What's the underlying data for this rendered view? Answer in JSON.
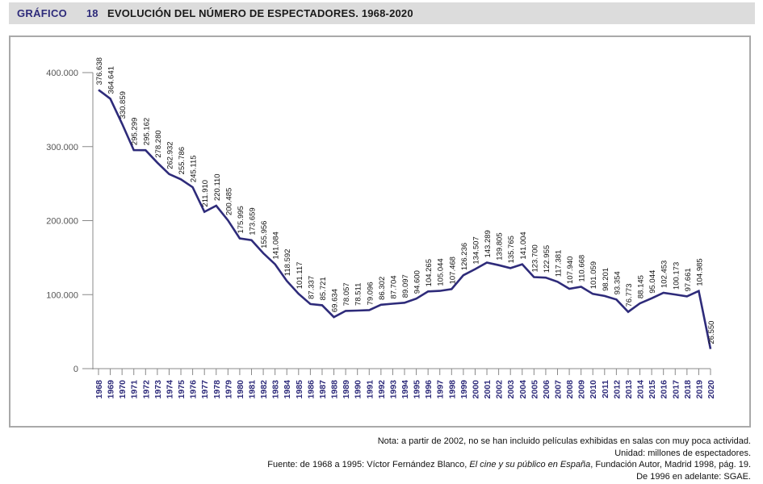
{
  "header": {
    "label": "GRÁFICO",
    "number": "18",
    "title": "EVOLUCIÓN DEL NÚMERO DE ESPECTADORES. 1968-2020"
  },
  "colors": {
    "line": "#2e2b7a",
    "header_label": "#2e2b7a",
    "header_bg": "#dcdcdc",
    "axis": "#888888",
    "frame": "#a9a9a9",
    "year_labels": "#2e2b7a"
  },
  "chart_data": {
    "type": "line",
    "title": "EVOLUCIÓN DEL NÚMERO DE ESPECTADORES. 1968-2020",
    "xlabel": "",
    "ylabel": "",
    "ylim": [
      0,
      400000
    ],
    "yticks": [
      0,
      100000,
      200000,
      300000,
      400000
    ],
    "ytick_labels": [
      "0",
      "100.000",
      "200.000",
      "300.000",
      "400.000"
    ],
    "grid": false,
    "legend": "none",
    "x": [
      1968,
      1969,
      1970,
      1971,
      1972,
      1973,
      1974,
      1975,
      1976,
      1977,
      1978,
      1979,
      1980,
      1981,
      1982,
      1983,
      1984,
      1985,
      1986,
      1987,
      1988,
      1989,
      1990,
      1991,
      1992,
      1993,
      1994,
      1995,
      1996,
      1997,
      1998,
      1999,
      2000,
      2001,
      2002,
      2003,
      2004,
      2005,
      2006,
      2007,
      2008,
      2009,
      2010,
      2011,
      2012,
      2013,
      2014,
      2015,
      2016,
      2017,
      2018,
      2019,
      2020
    ],
    "series": [
      {
        "name": "Espectadores",
        "values": [
          376638,
          364641,
          330859,
          295299,
          295162,
          278280,
          262932,
          255786,
          245115,
          211910,
          220110,
          200485,
          175995,
          173659,
          155956,
          141084,
          118592,
          101117,
          87337,
          85721,
          69634,
          78057,
          78511,
          79096,
          86302,
          87704,
          89097,
          94600,
          104265,
          105044,
          107468,
          126236,
          134507,
          143289,
          139805,
          135765,
          141004,
          123700,
          122955,
          117381,
          107940,
          110668,
          101059,
          98201,
          93354,
          76773,
          88145,
          95044,
          102453,
          100173,
          97661,
          104985,
          26550
        ],
        "labels": [
          "376.638",
          "364.641",
          "330.859",
          "295.299",
          "295.162",
          "278.280",
          "262.932",
          "255.786",
          "245.115",
          "211.910",
          "220.110",
          "200.485",
          "175.995",
          "173.659",
          "155.956",
          "141.084",
          "118.592",
          "101.117",
          "87.337",
          "85.721",
          "69.634",
          "78.057",
          "78.511",
          "79.096",
          "86.302",
          "87.704",
          "89.097",
          "94.600",
          "104.265",
          "105.044",
          "107.468",
          "126.236",
          "134.507",
          "143.289",
          "139.805",
          "135.765",
          "141.004",
          "123.700",
          "122.955",
          "117.381",
          "107.940",
          "110.668",
          "101.059",
          "98.201",
          "93.354",
          "76.773",
          "88.145",
          "95.044",
          "102.453",
          "100.173",
          "97.661",
          "104.985",
          "26.550"
        ]
      }
    ]
  },
  "footer": {
    "note": "Nota: a partir de 2002, no se han incluido películas exhibidas en salas con muy poca actividad.",
    "unit": "Unidad: millones de espectadores.",
    "source_prefix": "Fuente: de 1968 a 1995: Víctor Fernández Blanco, ",
    "source_book": "El cine y su público en España",
    "source_suffix": ", Fundación Autor, Madrid 1998, pág. 19.",
    "source2": "De 1996 en adelante: SGAE."
  }
}
